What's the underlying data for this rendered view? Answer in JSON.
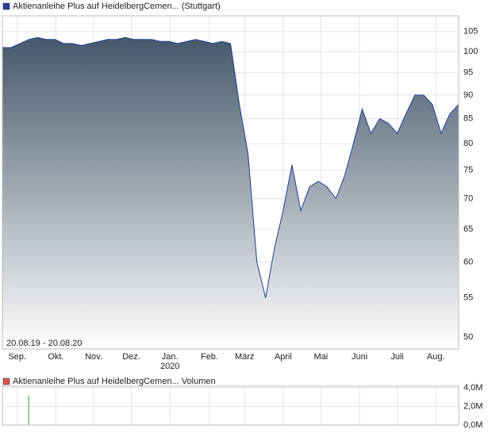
{
  "chart_data": [
    {
      "type": "area",
      "date_range": "20.08.19 - 20.08.20",
      "year_label": "2020",
      "log_scale": true,
      "grid": true,
      "series": [
        {
          "name": "Aktienanleihe Plus auf HeidelbergCemen... (Stuttgart)",
          "color": "#1f3f99",
          "values": [
            101,
            101,
            102,
            103,
            103.5,
            103,
            103,
            102,
            102,
            101.5,
            102,
            102.5,
            103,
            103,
            103.5,
            103,
            103,
            103,
            102.5,
            102.5,
            102,
            102.5,
            103,
            102.5,
            102,
            102.5,
            102,
            88,
            78,
            60,
            55,
            62,
            68,
            76,
            68,
            72,
            73,
            72,
            70,
            74,
            80,
            87,
            82,
            85,
            84,
            82,
            86,
            90,
            90,
            88,
            82,
            86,
            88
          ]
        }
      ],
      "xlim": [
        0,
        52
      ],
      "xticks": [
        {
          "value": 1.7,
          "label": "Sep."
        },
        {
          "value": 6.1,
          "label": "Okt."
        },
        {
          "value": 10.4,
          "label": "Nov."
        },
        {
          "value": 14.7,
          "label": "Dez."
        },
        {
          "value": 19.1,
          "label": "Jan."
        },
        {
          "value": 23.6,
          "label": "Feb."
        },
        {
          "value": 27.6,
          "label": "März"
        },
        {
          "value": 32.0,
          "label": "April"
        },
        {
          "value": 36.3,
          "label": "Mai"
        },
        {
          "value": 40.7,
          "label": "Juni"
        },
        {
          "value": 45.0,
          "label": "Juli"
        },
        {
          "value": 49.4,
          "label": "Aug."
        }
      ],
      "ylim": [
        48.6,
        107
      ],
      "yticks": [
        50,
        55,
        60,
        65,
        70,
        75,
        80,
        85,
        90,
        95,
        100,
        105
      ]
    },
    {
      "type": "bar",
      "series": [
        {
          "name": "Aktienanleihe Plus auf HeidelbergCemen... Volumen",
          "color": "#2ea02e",
          "values": [
            0,
            0,
            0,
            3200000,
            0,
            0,
            0,
            0,
            0,
            0,
            0,
            0,
            0,
            0,
            0,
            0,
            0,
            0,
            0,
            0,
            0,
            0,
            0,
            0,
            0,
            0,
            0,
            0,
            0,
            0,
            0,
            0,
            0,
            0,
            0,
            0,
            0,
            0,
            0,
            0,
            0,
            0,
            0,
            0,
            0,
            0,
            0,
            0,
            0,
            0,
            0,
            0,
            0
          ]
        }
      ],
      "xlim": [
        0,
        52
      ],
      "ylim": [
        0,
        4000000
      ],
      "yticks": [
        {
          "value": 0,
          "label": "0,0M"
        },
        {
          "value": 2000000,
          "label": "2,0M"
        },
        {
          "value": 4000000,
          "label": "4,0M"
        }
      ]
    }
  ]
}
